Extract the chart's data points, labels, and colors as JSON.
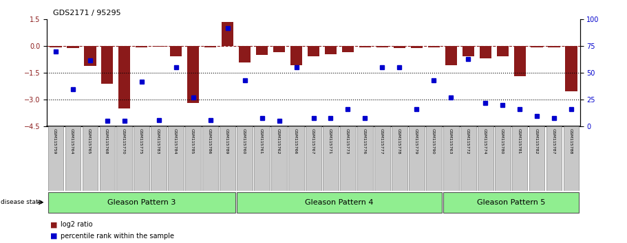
{
  "title": "GDS2171 / 95295",
  "samples": [
    "GSM115759",
    "GSM115764",
    "GSM115765",
    "GSM115768",
    "GSM115770",
    "GSM115775",
    "GSM115783",
    "GSM115784",
    "GSM115785",
    "GSM115786",
    "GSM115789",
    "GSM115760",
    "GSM115761",
    "GSM115762",
    "GSM115766",
    "GSM115767",
    "GSM115771",
    "GSM115773",
    "GSM115776",
    "GSM115777",
    "GSM115778",
    "GSM115779",
    "GSM115790",
    "GSM115763",
    "GSM115772",
    "GSM115774",
    "GSM115780",
    "GSM115781",
    "GSM115782",
    "GSM115787",
    "GSM115788"
  ],
  "log2_ratio": [
    -0.08,
    -0.12,
    -1.1,
    -2.1,
    -3.5,
    -0.05,
    -0.04,
    -0.55,
    -3.2,
    -0.06,
    1.35,
    -0.9,
    -0.5,
    -0.35,
    -1.05,
    -0.55,
    -0.45,
    -0.35,
    -0.06,
    -0.08,
    -0.1,
    -0.12,
    -0.08,
    -1.05,
    -0.55,
    -0.7,
    -0.55,
    -1.7,
    -0.07,
    -0.08,
    -2.55
  ],
  "percentile_rank": [
    70,
    35,
    62,
    5,
    5,
    42,
    6,
    55,
    27,
    6,
    92,
    43,
    8,
    5,
    55,
    8,
    8,
    16,
    8,
    55,
    55,
    16,
    43,
    27,
    63,
    22,
    20,
    16,
    10,
    8,
    16
  ],
  "group_labels": [
    "Gleason Pattern 3",
    "Gleason Pattern 4",
    "Gleason Pattern 5"
  ],
  "group_sizes": [
    11,
    12,
    8
  ],
  "group_color": "#90EE90",
  "bar_color": "#8B1A1A",
  "dot_color": "#0000CD",
  "ylim_left": [
    -4.5,
    1.5
  ],
  "yticks_left": [
    1.5,
    0,
    -1.5,
    -3,
    -4.5
  ],
  "ylim_right": [
    0,
    100
  ],
  "yticks_right": [
    0,
    25,
    50,
    75,
    100
  ],
  "dotted_lines": [
    -1.5,
    -3.0
  ],
  "sample_box_color": "#C8C8C8",
  "background_color": "#ffffff"
}
